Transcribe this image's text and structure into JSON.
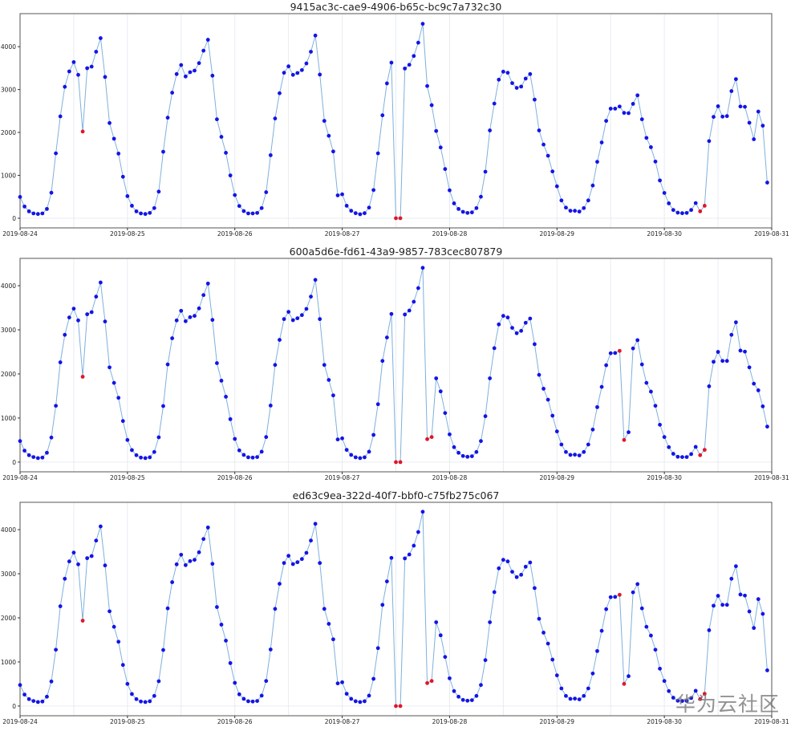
{
  "chart_data": [
    {
      "type": "line",
      "title": "9415ac3c-cae9-4906-b65c-bc9c7a732c30",
      "time_index": {
        "start": "2019-08-24 00:00",
        "freq": "1h"
      },
      "xlim": [
        "2019-08-24",
        "2019-08-31"
      ],
      "ylim": [
        -225,
        4770
      ],
      "x_ticks": [
        "2019-08-24",
        "2019-08-25",
        "2019-08-26",
        "2019-08-27",
        "2019-08-28",
        "2019-08-29",
        "2019-08-30",
        "2019-08-31"
      ],
      "y_ticks": [
        0,
        1000,
        2000,
        3000,
        4000
      ],
      "grid": "vertical every 12h, faint horizontal at 0",
      "values": [
        496,
        273,
        161,
        112,
        99,
        112,
        217,
        595,
        1513,
        2375,
        3064,
        3423,
        3640,
        3343,
        2022,
        3498,
        3535,
        3882,
        4198,
        3293,
        2220,
        1854,
        1507,
        967,
        515,
        291,
        161,
        112,
        99,
        124,
        236,
        620,
        1550,
        2344,
        2927,
        3361,
        3572,
        3305,
        3405,
        3442,
        3616,
        3907,
        4161,
        3324,
        2307,
        1898,
        1526,
        998,
        540,
        285,
        167,
        112,
        112,
        124,
        236,
        607,
        1470,
        2326,
        2915,
        3392,
        3541,
        3343,
        3386,
        3454,
        3609,
        3882,
        4260,
        3349,
        2270,
        1922,
        1557,
        533,
        558,
        291,
        174,
        118,
        93,
        118,
        248,
        657,
        1513,
        2400,
        3144,
        3628,
        0,
        0,
        3491,
        3578,
        3783,
        4093,
        4533,
        3082,
        2636,
        2034,
        1650,
        1147,
        651,
        347,
        217,
        149,
        124,
        136,
        236,
        502,
        1085,
        2047,
        2673,
        3231,
        3417,
        3392,
        3150,
        3039,
        3070,
        3256,
        3361,
        2766,
        2047,
        1718,
        1457,
        1091,
        744,
        415,
        248,
        174,
        174,
        155,
        236,
        415,
        763,
        1315,
        1767,
        2270,
        2555,
        2555,
        2605,
        2456,
        2450,
        2667,
        2865,
        2307,
        1873,
        1656,
        1321,
        881,
        589,
        347,
        192,
        130,
        118,
        124,
        192,
        353,
        161,
        291,
        1798,
        2363,
        2611,
        2369,
        2381,
        2964,
        3243,
        2605,
        2598,
        2226,
        1842,
        2487,
        2158,
        831
      ],
      "anomalies": [
        "2019-08-24 14:00",
        "2019-08-27 12:00",
        "2019-08-27 13:00",
        "2019-08-30 08:00",
        "2019-08-30 09:00"
      ]
    },
    {
      "type": "line",
      "title": "600a5d6e-fd61-43a9-9857-783cec807879",
      "time_index": {
        "start": "2019-08-24 00:00",
        "freq": "1h"
      },
      "xlim": [
        "2019-08-24",
        "2019-08-31"
      ],
      "ylim": [
        -220,
        4620
      ],
      "x_ticks": [
        "2019-08-24",
        "2019-08-25",
        "2019-08-26",
        "2019-08-27",
        "2019-08-28",
        "2019-08-29",
        "2019-08-30",
        "2019-08-31"
      ],
      "y_ticks": [
        0,
        1000,
        2000,
        3000,
        4000
      ],
      "grid": "vertical every 12h, faint horizontal at 0",
      "values": [
        478,
        260,
        157,
        115,
        91,
        103,
        212,
        557,
        1277,
        2263,
        2887,
        3280,
        3480,
        3213,
        1936,
        3353,
        3401,
        3752,
        4073,
        3189,
        2148,
        1797,
        1458,
        932,
        502,
        272,
        157,
        103,
        91,
        109,
        230,
        563,
        1271,
        2215,
        2808,
        3213,
        3431,
        3195,
        3286,
        3316,
        3486,
        3788,
        4049,
        3225,
        2245,
        1846,
        1483,
        974,
        526,
        266,
        163,
        109,
        103,
        115,
        236,
        569,
        1283,
        2203,
        2772,
        3244,
        3407,
        3219,
        3262,
        3334,
        3474,
        3752,
        4133,
        3244,
        2203,
        1864,
        1513,
        514,
        539,
        278,
        163,
        109,
        91,
        109,
        236,
        617,
        1313,
        2294,
        2826,
        3359,
        0,
        0,
        3347,
        3437,
        3637,
        3946,
        4405,
        520,
        569,
        1900,
        1604,
        1113,
        629,
        339,
        212,
        139,
        121,
        133,
        230,
        478,
        1041,
        1900,
        2584,
        3122,
        3316,
        3280,
        3044,
        2923,
        2977,
        3159,
        3256,
        2675,
        1979,
        1664,
        1416,
        1053,
        696,
        399,
        230,
        163,
        169,
        151,
        230,
        399,
        738,
        1247,
        1706,
        2197,
        2469,
        2475,
        2523,
        502,
        678,
        2578,
        2766,
        2215,
        1797,
        1598,
        1277,
        847,
        569,
        339,
        188,
        121,
        115,
        115,
        182,
        345,
        157,
        278,
        1719,
        2275,
        2499,
        2294,
        2294,
        2887,
        3171,
        2529,
        2505,
        2148,
        1779,
        1628,
        1265,
        805
      ],
      "anomalies": [
        "2019-08-24 14:00",
        "2019-08-27 12:00",
        "2019-08-27 13:00",
        "2019-08-27 19:00",
        "2019-08-27 20:00",
        "2019-08-29 14:00",
        "2019-08-29 15:00",
        "2019-08-30 08:00",
        "2019-08-30 09:00"
      ]
    },
    {
      "type": "line",
      "title": "ed63c9ea-322d-40f7-bbf0-c75fb275c067",
      "time_index": {
        "start": "2019-08-24 00:00",
        "freq": "1h"
      },
      "xlim": [
        "2019-08-24",
        "2019-08-31"
      ],
      "ylim": [
        -220,
        4620
      ],
      "x_ticks": [
        "2019-08-24",
        "2019-08-25",
        "2019-08-26",
        "2019-08-27",
        "2019-08-28",
        "2019-08-29",
        "2019-08-30",
        "2019-08-31"
      ],
      "y_ticks": [
        0,
        1000,
        2000,
        3000,
        4000
      ],
      "grid": "vertical every 12h, faint horizontal at 0",
      "values": [
        478,
        260,
        157,
        115,
        91,
        103,
        212,
        557,
        1277,
        2263,
        2887,
        3280,
        3480,
        3213,
        1936,
        3353,
        3401,
        3752,
        4073,
        3189,
        2148,
        1797,
        1458,
        932,
        502,
        272,
        157,
        103,
        91,
        109,
        230,
        563,
        1271,
        2215,
        2808,
        3213,
        3431,
        3195,
        3286,
        3316,
        3486,
        3788,
        4049,
        3225,
        2245,
        1846,
        1483,
        974,
        526,
        266,
        163,
        109,
        103,
        115,
        236,
        569,
        1283,
        2203,
        2772,
        3244,
        3407,
        3219,
        3262,
        3334,
        3474,
        3752,
        4133,
        3244,
        2203,
        1864,
        1513,
        514,
        539,
        278,
        163,
        109,
        91,
        109,
        236,
        617,
        1313,
        2294,
        2826,
        3359,
        0,
        0,
        3347,
        3437,
        3637,
        3946,
        4405,
        520,
        569,
        1900,
        1604,
        1113,
        629,
        339,
        212,
        139,
        121,
        133,
        230,
        478,
        1041,
        1900,
        2584,
        3122,
        3316,
        3280,
        3044,
        2923,
        2977,
        3159,
        3256,
        2675,
        1979,
        1664,
        1416,
        1053,
        696,
        399,
        230,
        163,
        169,
        151,
        230,
        399,
        738,
        1247,
        1706,
        2197,
        2469,
        2475,
        2523,
        502,
        678,
        2578,
        2766,
        2215,
        1797,
        1598,
        1277,
        847,
        569,
        339,
        188,
        121,
        115,
        115,
        182,
        345,
        157,
        278,
        1719,
        2275,
        2499,
        2294,
        2294,
        2887,
        3171,
        2529,
        2505,
        2145,
        1770,
        2424,
        2090,
        810
      ],
      "anomalies": [
        "2019-08-24 14:00",
        "2019-08-27 12:00",
        "2019-08-27 13:00",
        "2019-08-27 19:00",
        "2019-08-27 20:00",
        "2019-08-29 14:00",
        "2019-08-29 15:00",
        "2019-08-30 08:00",
        "2019-08-30 09:00"
      ]
    }
  ],
  "colors": {
    "line": "#7fb0dc",
    "point": "#1414e6",
    "anomaly": "#e0162b",
    "grid": "#e6ecf2",
    "axis": "#333333"
  },
  "watermark": "华为云社区"
}
